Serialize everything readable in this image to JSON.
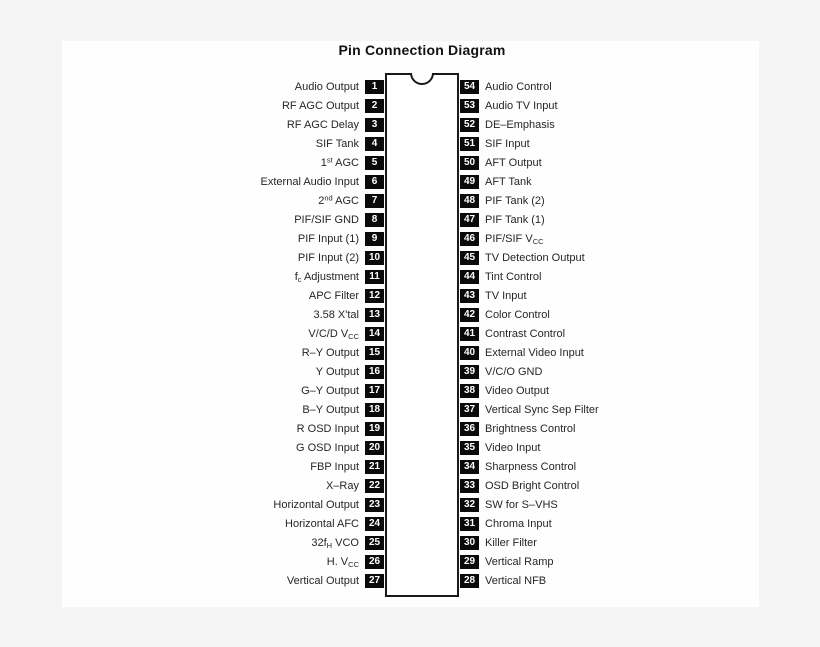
{
  "title": "Pin Connection Diagram",
  "colors": {
    "page_background": "#f5f5f5",
    "panel_background": "#fefefe",
    "pin_box": "#0a0a0a",
    "pin_box_text": "#ffffff",
    "chip_outline": "#1a1a1a",
    "label_text": "#262626"
  },
  "pins": {
    "left": [
      {
        "number": "1",
        "label": "Audio Output"
      },
      {
        "number": "2",
        "label": "RF AGC Output"
      },
      {
        "number": "3",
        "label": "RF AGC Delay"
      },
      {
        "number": "4",
        "label": "SIF Tank"
      },
      {
        "number": "5",
        "label": "1^{st} AGC"
      },
      {
        "number": "6",
        "label": "External Audio Input"
      },
      {
        "number": "7",
        "label": "2^{nd} AGC"
      },
      {
        "number": "8",
        "label": "PIF/SIF GND"
      },
      {
        "number": "9",
        "label": "PIF Input (1)"
      },
      {
        "number": "10",
        "label": "PIF Input (2)"
      },
      {
        "number": "11",
        "label": "f_{c} Adjustment"
      },
      {
        "number": "12",
        "label": "APC Filter"
      },
      {
        "number": "13",
        "label": "3.58 X'tal"
      },
      {
        "number": "14",
        "label": "V/C/D V_{CC}"
      },
      {
        "number": "15",
        "label": "R–Y Output"
      },
      {
        "number": "16",
        "label": "Y Output"
      },
      {
        "number": "17",
        "label": "G–Y Output"
      },
      {
        "number": "18",
        "label": "B–Y Output"
      },
      {
        "number": "19",
        "label": "R OSD Input"
      },
      {
        "number": "20",
        "label": "G OSD Input"
      },
      {
        "number": "21",
        "label": "FBP Input"
      },
      {
        "number": "22",
        "label": "X–Ray"
      },
      {
        "number": "23",
        "label": "Horizontal Output"
      },
      {
        "number": "24",
        "label": "Horizontal AFC"
      },
      {
        "number": "25",
        "label": "32f_{H} VCO"
      },
      {
        "number": "26",
        "label": "H. V_{CC}"
      },
      {
        "number": "27",
        "label": "Vertical Output"
      }
    ],
    "right": [
      {
        "number": "54",
        "label": "Audio Control"
      },
      {
        "number": "53",
        "label": "Audio TV Input"
      },
      {
        "number": "52",
        "label": "DE–Emphasis"
      },
      {
        "number": "51",
        "label": "SIF Input"
      },
      {
        "number": "50",
        "label": "AFT Output"
      },
      {
        "number": "49",
        "label": "AFT Tank"
      },
      {
        "number": "48",
        "label": "PIF Tank (2)"
      },
      {
        "number": "47",
        "label": "PIF Tank (1)"
      },
      {
        "number": "46",
        "label": "PIF/SIF V_{CC}"
      },
      {
        "number": "45",
        "label": "TV Detection Output"
      },
      {
        "number": "44",
        "label": "Tint Control"
      },
      {
        "number": "43",
        "label": "TV Input"
      },
      {
        "number": "42",
        "label": "Color Control"
      },
      {
        "number": "41",
        "label": "Contrast Control"
      },
      {
        "number": "40",
        "label": "External Video Input"
      },
      {
        "number": "39",
        "label": "V/C/O GND"
      },
      {
        "number": "38",
        "label": "Video Output"
      },
      {
        "number": "37",
        "label": "Vertical Sync Sep Filter"
      },
      {
        "number": "36",
        "label": "Brightness Control"
      },
      {
        "number": "35",
        "label": "Video Input"
      },
      {
        "number": "34",
        "label": "Sharpness Control"
      },
      {
        "number": "33",
        "label": "OSD Bright Control"
      },
      {
        "number": "32",
        "label": "SW for S–VHS"
      },
      {
        "number": "31",
        "label": "Chroma Input"
      },
      {
        "number": "30",
        "label": "Killer Filter"
      },
      {
        "number": "29",
        "label": "Vertical Ramp"
      },
      {
        "number": "28",
        "label": "Vertical NFB"
      }
    ]
  }
}
